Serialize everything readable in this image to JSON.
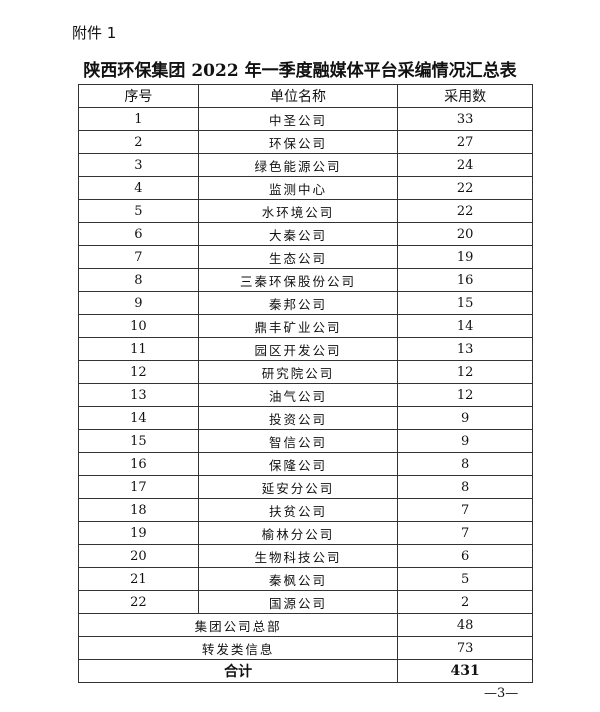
{
  "attachment_label": "附件 1",
  "title": "陕西环保集团 2022 年一季度融媒体平台采编情况汇总表",
  "headers": [
    "序号",
    "单位名称",
    "采用数"
  ],
  "rows": [
    {
      "no": "1",
      "name": "中圣公司",
      "count": "33"
    },
    {
      "no": "2",
      "name": "环保公司",
      "count": "27"
    },
    {
      "no": "3",
      "name": "绿色能源公司",
      "count": "24"
    },
    {
      "no": "4",
      "name": "监测中心",
      "count": "22"
    },
    {
      "no": "5",
      "name": "水环境公司",
      "count": "22"
    },
    {
      "no": "6",
      "name": "大秦公司",
      "count": "20"
    },
    {
      "no": "7",
      "name": "生态公司",
      "count": "19"
    },
    {
      "no": "8",
      "name": "三秦环保股份公司",
      "count": "16"
    },
    {
      "no": "9",
      "name": "秦邦公司",
      "count": "15"
    },
    {
      "no": "10",
      "name": "鼎丰矿业公司",
      "count": "14"
    },
    {
      "no": "11",
      "name": "园区开发公司",
      "count": "13"
    },
    {
      "no": "12",
      "name": "研究院公司",
      "count": "12"
    },
    {
      "no": "13",
      "name": "油气公司",
      "count": "12"
    },
    {
      "no": "14",
      "name": "投资公司",
      "count": "9"
    },
    {
      "no": "15",
      "name": "智信公司",
      "count": "9"
    },
    {
      "no": "16",
      "name": "保隆公司",
      "count": "8"
    },
    {
      "no": "17",
      "name": "延安分公司",
      "count": "8"
    },
    {
      "no": "18",
      "name": "扶贫公司",
      "count": "7"
    },
    {
      "no": "19",
      "name": "榆林分公司",
      "count": "7"
    },
    {
      "no": "20",
      "name": "生物科技公司",
      "count": "6"
    },
    {
      "no": "21",
      "name": "秦枫公司",
      "count": "5"
    },
    {
      "no": "22",
      "name": "国源公司",
      "count": "2"
    }
  ],
  "summary": [
    {
      "label": "集团公司总部",
      "count": "48"
    },
    {
      "label": "转发类信息",
      "count": "73"
    }
  ],
  "total": {
    "label": "合计",
    "count": "431"
  },
  "page_number": "—3—"
}
